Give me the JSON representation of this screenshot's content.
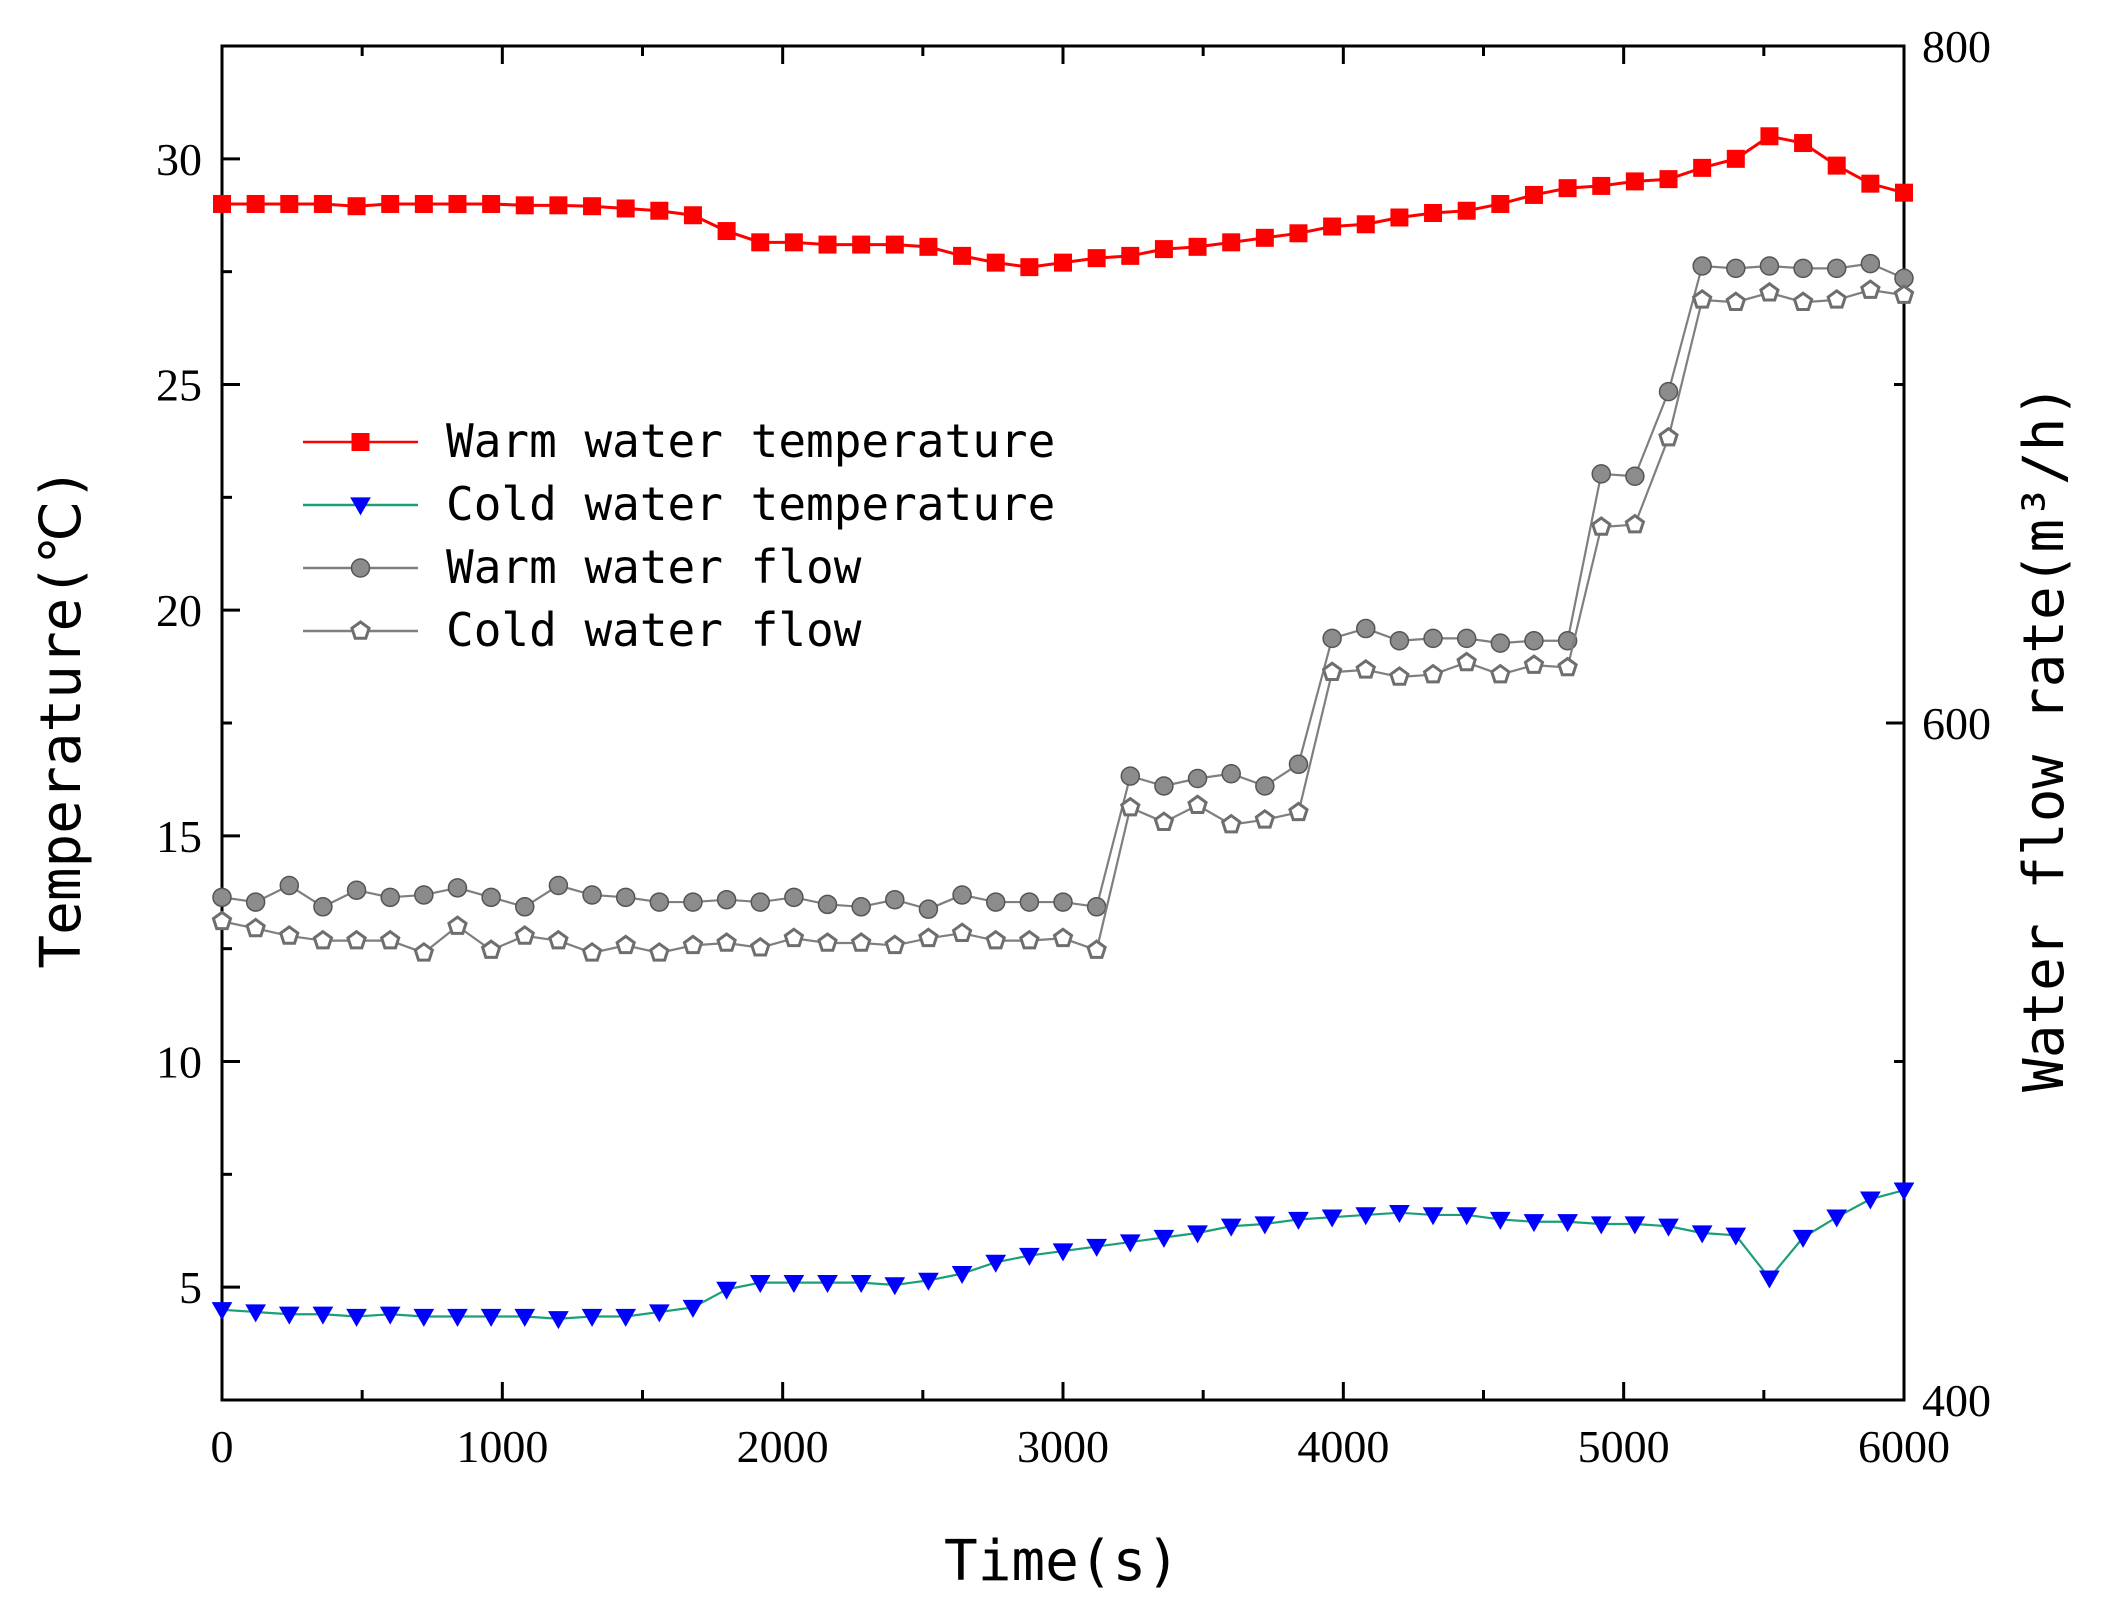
{
  "chart_data": {
    "type": "line",
    "title": "",
    "xlabel": "Time(s)",
    "ylabel_left": "Temperature(℃)",
    "ylabel_right": "Water flow rate(m³/h)",
    "xlim": [
      0,
      6000
    ],
    "ylim_left": [
      2.5,
      32.5
    ],
    "ylim_right": [
      400,
      800
    ],
    "x_ticks": [
      0,
      1000,
      2000,
      3000,
      4000,
      5000,
      6000
    ],
    "x_tick_labels": [
      "0",
      "1000",
      "2000",
      "3000",
      "4000",
      "5000",
      "6000"
    ],
    "y_left_ticks": [
      5,
      10,
      15,
      20,
      25,
      30
    ],
    "y_left_tick_labels": [
      "5",
      "10",
      "15",
      "20",
      "25",
      "30"
    ],
    "y_right_ticks": [
      400,
      600,
      800
    ],
    "y_right_tick_labels": [
      "400",
      "600",
      "800"
    ],
    "grid": false,
    "legend_position": "upper-left",
    "x": [
      0,
      120,
      240,
      360,
      480,
      600,
      720,
      840,
      960,
      1080,
      1200,
      1320,
      1440,
      1560,
      1680,
      1800,
      1920,
      2040,
      2160,
      2280,
      2400,
      2520,
      2640,
      2760,
      2880,
      3000,
      3120,
      3240,
      3360,
      3480,
      3600,
      3720,
      3840,
      3960,
      4080,
      4200,
      4320,
      4440,
      4560,
      4680,
      4800,
      4920,
      5040,
      5160,
      5280,
      5400,
      5520,
      5640,
      5760,
      5880,
      6000
    ],
    "series": [
      {
        "name": "Warm water temperature",
        "axis": "left",
        "color": "#ff0000",
        "marker": "square",
        "values": [
          29.0,
          29.0,
          29.0,
          29.0,
          28.95,
          29.0,
          29.0,
          29.0,
          29.0,
          28.97,
          28.97,
          28.95,
          28.9,
          28.85,
          28.75,
          28.4,
          28.15,
          28.15,
          28.1,
          28.1,
          28.1,
          28.05,
          27.85,
          27.7,
          27.6,
          27.7,
          27.8,
          27.85,
          28.0,
          28.05,
          28.15,
          28.25,
          28.35,
          28.5,
          28.55,
          28.7,
          28.8,
          28.85,
          29.0,
          29.2,
          29.35,
          29.4,
          29.5,
          29.55,
          29.8,
          30.0,
          30.5,
          30.35,
          29.85,
          29.45,
          29.25
        ]
      },
      {
        "name": "Cold water temperature",
        "axis": "left",
        "color": "#0000ff",
        "line_color": "#1a9f7a",
        "marker": "triangle-down",
        "values": [
          4.5,
          4.45,
          4.4,
          4.4,
          4.35,
          4.4,
          4.35,
          4.35,
          4.35,
          4.35,
          4.3,
          4.35,
          4.35,
          4.45,
          4.55,
          4.95,
          5.1,
          5.1,
          5.1,
          5.1,
          5.05,
          5.15,
          5.3,
          5.55,
          5.7,
          5.8,
          5.9,
          6.0,
          6.1,
          6.2,
          6.35,
          6.4,
          6.5,
          6.55,
          6.6,
          6.65,
          6.6,
          6.6,
          6.5,
          6.45,
          6.45,
          6.4,
          6.4,
          6.35,
          6.2,
          6.15,
          5.2,
          6.1,
          6.55,
          6.95,
          7.15
        ]
      },
      {
        "name": "Warm water flow",
        "axis": "right",
        "color": "#7f7f7f",
        "marker": "circle",
        "values": [
          548.5,
          547.1,
          552.0,
          545.7,
          550.6,
          548.5,
          549.2,
          551.3,
          548.5,
          545.7,
          552.0,
          549.2,
          548.5,
          547.1,
          547.1,
          547.8,
          547.1,
          548.5,
          546.4,
          545.7,
          547.8,
          545.0,
          549.2,
          547.1,
          547.1,
          547.1,
          545.7,
          584.3,
          581.4,
          583.6,
          585.0,
          581.4,
          587.8,
          625.0,
          627.9,
          624.3,
          625.0,
          625.0,
          623.6,
          624.3,
          624.3,
          673.6,
          672.9,
          697.9,
          735.0,
          734.3,
          735.0,
          734.3,
          734.3,
          735.7,
          731.4
        ]
      },
      {
        "name": "Cold water flow",
        "axis": "right",
        "color": "#7f7f7f",
        "marker": "pentagon",
        "values": [
          541.4,
          539.3,
          537.1,
          535.7,
          535.7,
          535.7,
          532.1,
          540.0,
          532.9,
          537.1,
          535.7,
          532.1,
          534.3,
          532.1,
          534.3,
          535.0,
          533.6,
          536.4,
          535.0,
          535.0,
          534.3,
          536.4,
          537.9,
          535.7,
          535.7,
          536.4,
          532.9,
          575.0,
          570.7,
          575.7,
          570.0,
          571.4,
          573.6,
          615.0,
          615.7,
          613.6,
          614.3,
          617.9,
          614.3,
          617.1,
          616.4,
          657.9,
          658.6,
          684.3,
          725.0,
          724.3,
          727.1,
          724.3,
          725.0,
          727.9,
          726.4
        ]
      }
    ]
  }
}
